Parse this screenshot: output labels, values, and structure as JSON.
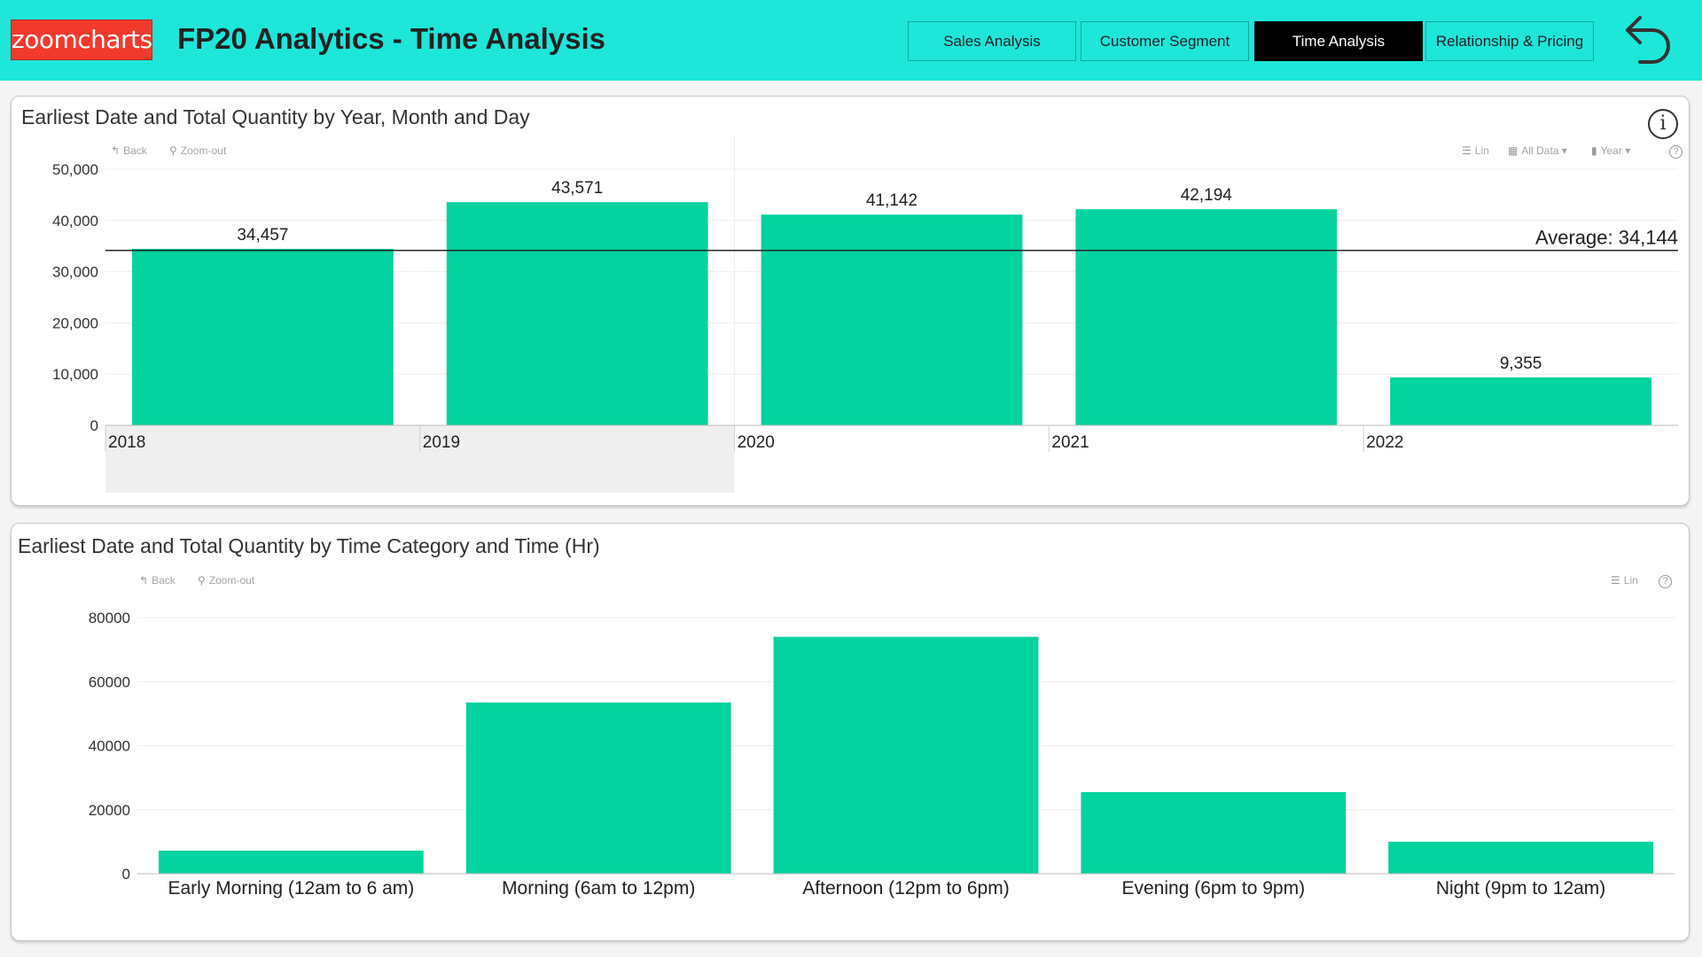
{
  "header": {
    "logo_text": "zoomcharts",
    "title": "FP20 Analytics - Time Analysis",
    "tabs": [
      {
        "label": "Sales Analysis",
        "active": false
      },
      {
        "label": "Customer Segment",
        "active": false
      },
      {
        "label": "Time Analysis",
        "active": true
      },
      {
        "label": "Relationship & Pricing",
        "active": false
      }
    ],
    "back_icon": "undo-arrow-icon",
    "colors": {
      "header_bg": "#1ee6d9",
      "logo_bg": "#f23a2c",
      "active_tab_bg": "#000000"
    }
  },
  "year_chart_card": {
    "title": "Earliest Date and Total Quantity by Year, Month and Day",
    "toolbar": {
      "back_label": "Back",
      "zoom_out_label": "Zoom-out",
      "scale_label": "Lin",
      "data_label": "All Data",
      "level_label": "Year"
    },
    "icons": [
      "info-icon",
      "help-icon"
    ]
  },
  "time_chart_card": {
    "title": "Earliest Date and Total Quantity by Time Category and Time (Hr)",
    "toolbar": {
      "back_label": "Back",
      "zoom_out_label": "Zoom-out",
      "scale_label": "Lin"
    },
    "icons": [
      "help-icon"
    ]
  },
  "chart_data": [
    {
      "type": "bar",
      "categories": [
        "2018",
        "2019",
        "2020",
        "2021",
        "2022"
      ],
      "values": [
        34457,
        43571,
        41142,
        42194,
        9355
      ],
      "data_labels": [
        "34,457",
        "43,571",
        "41,142",
        "42,194",
        "9,355"
      ],
      "title": "Earliest Date and Total Quantity by Year, Month and Day",
      "ylim": [
        0,
        50000
      ],
      "yticks": [
        0,
        10000,
        20000,
        30000,
        40000,
        50000
      ],
      "ytick_labels": [
        "0",
        "10,000",
        "20,000",
        "30,000",
        "40,000",
        "50,000"
      ],
      "average": 34144,
      "average_label": "Average: 34,144",
      "bar_color": "#03d39e",
      "grid": true
    },
    {
      "type": "bar",
      "categories": [
        "Early Morning (12am to 6 am)",
        "Morning (6am to 12pm)",
        "Afternoon (12pm to 6pm)",
        "Evening (6pm to 9pm)",
        "Night (9pm to 12am)"
      ],
      "values": [
        7200,
        53500,
        74000,
        25500,
        10000
      ],
      "title": "Earliest Date and Total Quantity by Time Category and Time (Hr)",
      "ylim": [
        0,
        80000
      ],
      "yticks": [
        0,
        20000,
        40000,
        60000,
        80000
      ],
      "ytick_labels": [
        "0",
        "20000",
        "40000",
        "60000",
        "80000"
      ],
      "bar_color": "#03d39e",
      "grid": true
    }
  ]
}
